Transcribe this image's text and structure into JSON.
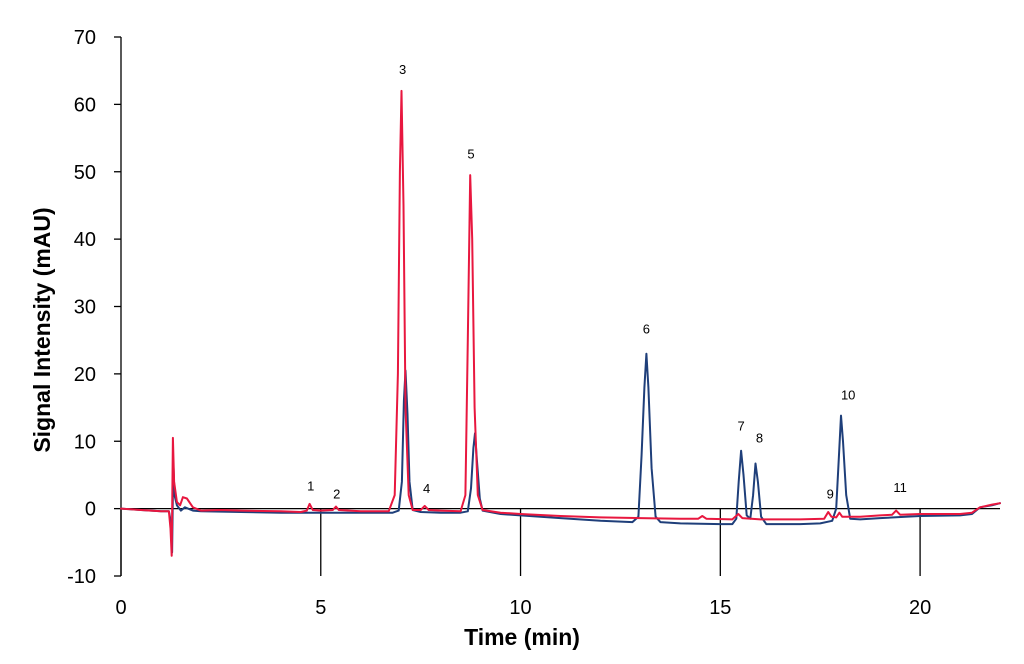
{
  "chart_data": {
    "type": "line",
    "title": "",
    "xlabel": "Time (min)",
    "ylabel": "Signal Intensity (mAU)",
    "xlim": [
      0,
      22
    ],
    "ylim": [
      -10,
      70
    ],
    "x_ticks": [
      0,
      5,
      10,
      15,
      20
    ],
    "y_ticks": [
      -10,
      0,
      10,
      20,
      30,
      40,
      50,
      60,
      70
    ],
    "grid": false,
    "legend": "none",
    "colors": {
      "blue": "#1f3f7a",
      "red": "#e8173f"
    },
    "series": [
      {
        "color": "#1f3f7a",
        "points": [
          [
            0,
            0
          ],
          [
            0.5,
            -0.2
          ],
          [
            1.0,
            -0.4
          ],
          [
            1.2,
            -0.4
          ],
          [
            1.25,
            -2
          ],
          [
            1.28,
            -6.5
          ],
          [
            1.31,
            7
          ],
          [
            1.34,
            2
          ],
          [
            1.4,
            0.5
          ],
          [
            1.5,
            -0.3
          ],
          [
            1.6,
            0.2
          ],
          [
            1.8,
            -0.3
          ],
          [
            2.0,
            -0.4
          ],
          [
            3.0,
            -0.5
          ],
          [
            4.0,
            -0.6
          ],
          [
            5.0,
            -0.6
          ],
          [
            6.0,
            -0.6
          ],
          [
            6.8,
            -0.6
          ],
          [
            6.95,
            -0.3
          ],
          [
            7.03,
            4
          ],
          [
            7.08,
            16
          ],
          [
            7.12,
            20.5
          ],
          [
            7.17,
            14
          ],
          [
            7.22,
            4
          ],
          [
            7.3,
            -0.2
          ],
          [
            7.5,
            -0.5
          ],
          [
            8.0,
            -0.6
          ],
          [
            8.5,
            -0.6
          ],
          [
            8.68,
            -0.4
          ],
          [
            8.76,
            3
          ],
          [
            8.82,
            9
          ],
          [
            8.86,
            11.2
          ],
          [
            8.91,
            7
          ],
          [
            8.98,
            1.5
          ],
          [
            9.05,
            -0.3
          ],
          [
            9.5,
            -0.8
          ],
          [
            10.0,
            -1.0
          ],
          [
            11.0,
            -1.4
          ],
          [
            12.0,
            -1.8
          ],
          [
            12.8,
            -2.0
          ],
          [
            12.95,
            -1.2
          ],
          [
            13.03,
            8
          ],
          [
            13.1,
            18
          ],
          [
            13.15,
            23
          ],
          [
            13.2,
            18
          ],
          [
            13.28,
            6
          ],
          [
            13.38,
            -1.2
          ],
          [
            13.5,
            -2.0
          ],
          [
            14.0,
            -2.2
          ],
          [
            15.0,
            -2.3
          ],
          [
            15.3,
            -2.3
          ],
          [
            15.4,
            -1.5
          ],
          [
            15.46,
            4
          ],
          [
            15.52,
            8.6
          ],
          [
            15.58,
            5
          ],
          [
            15.66,
            -1.0
          ],
          [
            15.75,
            -1.5
          ],
          [
            15.82,
            2
          ],
          [
            15.88,
            6.7
          ],
          [
            15.94,
            4
          ],
          [
            16.02,
            -1.2
          ],
          [
            16.15,
            -2.3
          ],
          [
            17.0,
            -2.3
          ],
          [
            17.5,
            -2.2
          ],
          [
            17.8,
            -1.8
          ],
          [
            17.9,
            0
          ],
          [
            17.97,
            8
          ],
          [
            18.02,
            13.8
          ],
          [
            18.07,
            10
          ],
          [
            18.15,
            2
          ],
          [
            18.25,
            -1.5
          ],
          [
            18.5,
            -1.6
          ],
          [
            19.0,
            -1.4
          ],
          [
            20.0,
            -1.1
          ],
          [
            21.0,
            -1.0
          ],
          [
            21.3,
            -0.8
          ],
          [
            21.5,
            0.2
          ],
          [
            21.8,
            0.5
          ],
          [
            22.0,
            0.8
          ]
        ]
      },
      {
        "color": "#e8173f",
        "points": [
          [
            0,
            0
          ],
          [
            0.5,
            -0.2
          ],
          [
            1.0,
            -0.4
          ],
          [
            1.2,
            -0.4
          ],
          [
            1.24,
            -3
          ],
          [
            1.27,
            -7
          ],
          [
            1.3,
            10.5
          ],
          [
            1.33,
            4
          ],
          [
            1.4,
            1
          ],
          [
            1.48,
            0.5
          ],
          [
            1.55,
            1.7
          ],
          [
            1.65,
            1.5
          ],
          [
            1.8,
            0.2
          ],
          [
            2.0,
            -0.3
          ],
          [
            2.5,
            -0.2
          ],
          [
            3.0,
            -0.3
          ],
          [
            4.0,
            -0.4
          ],
          [
            4.5,
            -0.5
          ],
          [
            4.65,
            -0.3
          ],
          [
            4.72,
            0.7
          ],
          [
            4.8,
            -0.2
          ],
          [
            5.0,
            -0.3
          ],
          [
            5.3,
            -0.2
          ],
          [
            5.38,
            0.3
          ],
          [
            5.45,
            -0.2
          ],
          [
            6.0,
            -0.4
          ],
          [
            6.7,
            -0.4
          ],
          [
            6.85,
            2
          ],
          [
            6.93,
            20
          ],
          [
            6.98,
            50
          ],
          [
            7.02,
            62
          ],
          [
            7.07,
            45
          ],
          [
            7.12,
            15
          ],
          [
            7.2,
            2
          ],
          [
            7.3,
            -0.2
          ],
          [
            7.5,
            -0.2
          ],
          [
            7.6,
            0.4
          ],
          [
            7.7,
            -0.2
          ],
          [
            8.0,
            -0.3
          ],
          [
            8.5,
            -0.4
          ],
          [
            8.62,
            2
          ],
          [
            8.68,
            25
          ],
          [
            8.74,
            49.5
          ],
          [
            8.79,
            40
          ],
          [
            8.85,
            15
          ],
          [
            8.93,
            2
          ],
          [
            9.05,
            -0.2
          ],
          [
            9.5,
            -0.6
          ],
          [
            10.0,
            -0.8
          ],
          [
            11.0,
            -1.1
          ],
          [
            12.0,
            -1.3
          ],
          [
            13.0,
            -1.4
          ],
          [
            14.0,
            -1.5
          ],
          [
            14.45,
            -1.5
          ],
          [
            14.55,
            -1.1
          ],
          [
            14.65,
            -1.5
          ],
          [
            15.3,
            -1.6
          ],
          [
            15.45,
            -0.8
          ],
          [
            15.55,
            -1.4
          ],
          [
            16.0,
            -1.6
          ],
          [
            17.0,
            -1.6
          ],
          [
            17.6,
            -1.5
          ],
          [
            17.7,
            -0.5
          ],
          [
            17.78,
            -1.2
          ],
          [
            17.9,
            -1.3
          ],
          [
            17.98,
            -0.6
          ],
          [
            18.05,
            -1.2
          ],
          [
            18.5,
            -1.2
          ],
          [
            19.0,
            -1.0
          ],
          [
            19.3,
            -0.9
          ],
          [
            19.4,
            -0.3
          ],
          [
            19.5,
            -0.9
          ],
          [
            20.0,
            -0.8
          ],
          [
            21.0,
            -0.8
          ],
          [
            21.3,
            -0.6
          ],
          [
            21.5,
            0.2
          ],
          [
            21.8,
            0.6
          ],
          [
            22.0,
            0.8
          ]
        ]
      }
    ],
    "annotations": [
      {
        "text": "1",
        "x": 4.75,
        "y": 2.7
      },
      {
        "text": "2",
        "x": 5.4,
        "y": 1.5
      },
      {
        "text": "3",
        "x": 7.05,
        "y": 64.5
      },
      {
        "text": "4",
        "x": 7.65,
        "y": 2.3
      },
      {
        "text": "5",
        "x": 8.76,
        "y": 52
      },
      {
        "text": "6",
        "x": 13.15,
        "y": 26
      },
      {
        "text": "7",
        "x": 15.52,
        "y": 11.6
      },
      {
        "text": "8",
        "x": 15.98,
        "y": 9.8
      },
      {
        "text": "9",
        "x": 17.75,
        "y": 1.5
      },
      {
        "text": "10",
        "x": 18.2,
        "y": 16.2
      },
      {
        "text": "11",
        "x": 19.5,
        "y": 2.5
      }
    ]
  }
}
